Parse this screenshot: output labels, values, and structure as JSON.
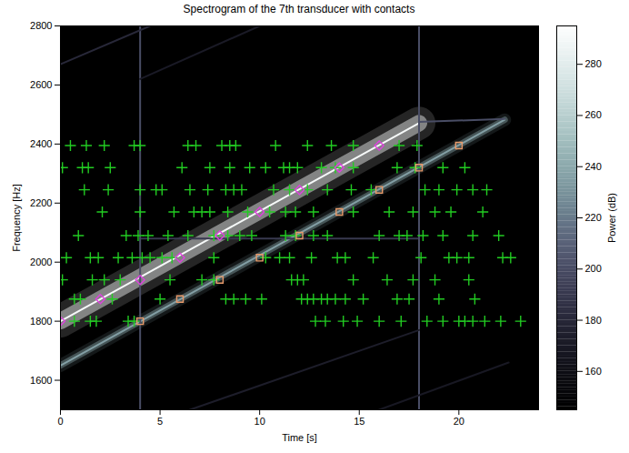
{
  "chart_data": {
    "type": "scatter",
    "title": "Spectrogram of the 7th transducer with contacts",
    "xlabel": "Time [s]",
    "ylabel": "Frequency [Hz]",
    "xlim": [
      0,
      24
    ],
    "ylim": [
      1500,
      2800
    ],
    "xticks": [
      0,
      5,
      10,
      15,
      20
    ],
    "yticks": [
      1600,
      1800,
      2000,
      2200,
      2400,
      2600,
      2800
    ],
    "colorbar": {
      "label": "Power (dB)",
      "range": [
        145,
        295
      ],
      "ticks": [
        160,
        180,
        200,
        220,
        240,
        260,
        280
      ]
    },
    "spectrogram": [
      {
        "x": [
          0,
          18
        ],
        "y": [
          1800,
          2471
        ],
        "power": 290
      },
      {
        "x": [
          0,
          22.3
        ],
        "y": [
          1650,
          2482
        ],
        "power": 235
      },
      {
        "x": [
          18,
          22.3
        ],
        "y": [
          2475,
          2485
        ],
        "power": 200
      },
      {
        "x": [
          4,
          18
        ],
        "y": [
          2080,
          2080
        ],
        "power": 190
      },
      {
        "x": [
          4,
          4
        ],
        "y": [
          1500,
          2800
        ],
        "power": 200
      },
      {
        "x": [
          18,
          18
        ],
        "y": [
          1500,
          2800
        ],
        "power": 200
      },
      {
        "x": [
          0,
          4.5
        ],
        "y": [
          2670,
          2800
        ],
        "power": 180
      },
      {
        "x": [
          4,
          10
        ],
        "y": [
          2620,
          2800
        ],
        "power": 170
      },
      {
        "x": [
          6.5,
          18
        ],
        "y": [
          1500,
          1770
        ],
        "power": 172
      },
      {
        "x": [
          16,
          22.5
        ],
        "y": [
          1500,
          1660
        ],
        "power": 168
      }
    ],
    "series": [
      {
        "color": "#22cc22",
        "marker": "plus",
        "x": [
          0.5,
          1.3,
          2.2,
          3.7,
          4.0,
          6.4,
          6.8,
          8.1,
          8.5,
          8.8,
          10.8,
          12.4,
          13.6,
          14.7,
          17.0,
          17.9,
          0.1,
          1.1,
          1.4,
          2.5,
          6.1,
          7.5,
          8.5,
          9.5,
          10.3,
          11.2,
          11.5,
          11.9,
          13.1,
          13.8,
          14.7,
          16.9,
          17.8,
          19.2,
          20.3,
          1.2,
          2.4,
          4.0,
          4.8,
          5.1,
          6.5,
          7.4,
          8.3,
          8.7,
          9.1,
          10.7,
          11.5,
          12.4,
          13.4,
          14.6,
          15.6,
          18.3,
          19.0,
          19.9,
          20.7,
          21.4,
          2.1,
          4.0,
          5.7,
          6.7,
          7.1,
          7.5,
          8.4,
          9.4,
          10.5,
          11.3,
          11.8,
          12.7,
          14.7,
          16.5,
          17.7,
          18.8,
          19.6,
          21.2,
          0.9,
          3.3,
          3.9,
          4.4,
          5.4,
          6.4,
          7.7,
          8.4,
          9.0,
          9.6,
          11.3,
          11.8,
          12.7,
          13.4,
          16.0,
          17.0,
          17.4,
          18.2,
          19.2,
          20.7,
          22.0,
          0.3,
          1.5,
          1.9,
          2.9,
          3.6,
          4.1,
          4.5,
          5.1,
          5.6,
          7.7,
          10.3,
          11.0,
          11.5,
          12.6,
          13.9,
          14.3,
          15.7,
          18.1,
          19.5,
          19.9,
          20.5,
          22.2,
          22.6,
          0.1,
          1.6,
          2.2,
          3.0,
          5.5,
          7.1,
          7.7,
          11.6,
          11.9,
          12.2,
          14.7,
          16.4,
          17.7,
          18.8,
          20.5,
          0.7,
          1.0,
          2.6,
          5.0,
          8.3,
          8.7,
          9.3,
          10.1,
          12.1,
          12.4,
          12.7,
          13.1,
          13.4,
          13.8,
          14.3,
          15.2,
          16.9,
          17.5,
          19.0,
          20.8,
          0.7,
          1.5,
          1.8,
          3.4,
          3.7,
          12.8,
          13.3,
          14.2,
          14.9,
          16.0,
          17.1,
          18.4,
          19.2,
          20.0,
          20.3,
          20.7,
          21.3,
          22.1,
          23.1
        ],
        "y": [
          2395,
          2395,
          2395,
          2395,
          2395,
          2395,
          2395,
          2395,
          2395,
          2395,
          2395,
          2395,
          2395,
          2395,
          2395,
          2395,
          2320,
          2320,
          2320,
          2320,
          2320,
          2320,
          2320,
          2320,
          2320,
          2320,
          2320,
          2320,
          2320,
          2320,
          2320,
          2320,
          2320,
          2320,
          2320,
          2245,
          2245,
          2245,
          2245,
          2245,
          2245,
          2245,
          2245,
          2245,
          2245,
          2245,
          2245,
          2245,
          2245,
          2245,
          2245,
          2245,
          2245,
          2245,
          2245,
          2245,
          2170,
          2170,
          2170,
          2170,
          2170,
          2170,
          2170,
          2170,
          2170,
          2170,
          2170,
          2170,
          2170,
          2170,
          2170,
          2170,
          2170,
          2170,
          2090,
          2090,
          2090,
          2090,
          2090,
          2090,
          2090,
          2090,
          2090,
          2090,
          2090,
          2090,
          2090,
          2090,
          2090,
          2090,
          2090,
          2090,
          2090,
          2090,
          2090,
          2015,
          2015,
          2015,
          2015,
          2015,
          2015,
          2015,
          2015,
          2015,
          2015,
          2015,
          2015,
          2015,
          2015,
          2015,
          2015,
          2015,
          2015,
          2015,
          2015,
          2015,
          2015,
          2015,
          1940,
          1940,
          1940,
          1940,
          1940,
          1940,
          1940,
          1940,
          1940,
          1940,
          1940,
          1940,
          1940,
          1940,
          1940,
          1875,
          1875,
          1875,
          1875,
          1875,
          1875,
          1875,
          1875,
          1875,
          1875,
          1875,
          1875,
          1875,
          1875,
          1875,
          1875,
          1875,
          1875,
          1875,
          1875,
          1800,
          1800,
          1800,
          1800,
          1800,
          1800,
          1800,
          1800,
          1800,
          1800,
          1800,
          1800,
          1800,
          1800,
          1800,
          1800,
          1800,
          1800,
          1800
        ]
      },
      {
        "color": "#e040e0",
        "marker": "diamond",
        "x": [
          0,
          2,
          4,
          6,
          8,
          10,
          12,
          14,
          16
        ],
        "y": [
          1800,
          1875,
          1940,
          2015,
          2090,
          2170,
          2245,
          2320,
          2395
        ]
      },
      {
        "color": "#e89a6a",
        "marker": "square",
        "x": [
          4,
          6,
          8,
          10,
          12,
          14,
          16,
          18,
          20
        ],
        "y": [
          1800,
          1875,
          1940,
          2015,
          2090,
          2170,
          2245,
          2320,
          2395
        ]
      }
    ]
  }
}
